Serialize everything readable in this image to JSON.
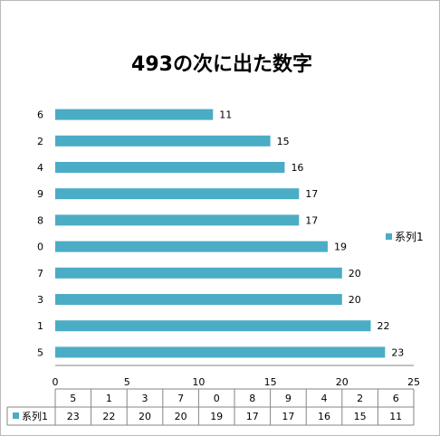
{
  "chart_data": {
    "type": "bar",
    "orientation": "horizontal",
    "title": "493の次に出た数字",
    "categories": [
      "5",
      "1",
      "3",
      "7",
      "0",
      "8",
      "9",
      "4",
      "2",
      "6"
    ],
    "series": [
      {
        "name": "系列1",
        "values": [
          23,
          22,
          20,
          20,
          19,
          17,
          17,
          16,
          15,
          11
        ],
        "color": "#4bacc6"
      }
    ],
    "xlim": [
      0,
      25
    ],
    "xticks": [
      "0",
      "5",
      "10",
      "15",
      "20",
      "25"
    ],
    "legend_position": "right",
    "data_table": true,
    "grid": false
  }
}
